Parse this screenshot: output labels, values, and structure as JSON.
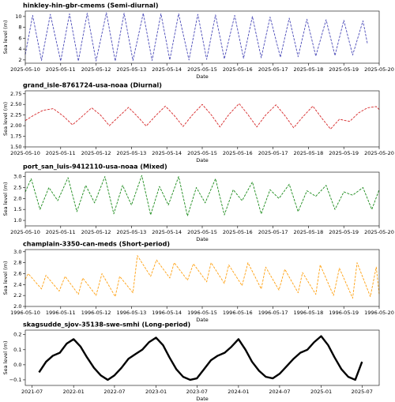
{
  "chart_data": [
    {
      "type": "line",
      "title": "hinkley-hin-gbr-cmems (Semi-diurnal)",
      "xlabel": "Date",
      "ylabel": "Sea level (m)",
      "color": "#4a4ab8",
      "linestyle": "dashed",
      "xlim": [
        "2025-05-10",
        "2025-05-20"
      ],
      "ylim": [
        1.4,
        11.0
      ],
      "xticks": [
        "2025-05-10",
        "2025-05-11",
        "2025-05-12",
        "2025-05-13",
        "2025-05-14",
        "2025-05-15",
        "2025-05-16",
        "2025-05-17",
        "2025-05-18",
        "2025-05-19",
        "2025-05-20"
      ],
      "yticks": [
        2,
        4,
        6,
        8,
        10
      ],
      "x": [
        "2025-05-10 00:00",
        "2025-05-10 05:00",
        "2025-05-10 11:00",
        "2025-05-10 17:00",
        "2025-05-11 00:00",
        "2025-05-11 06:00",
        "2025-05-11 12:00",
        "2025-05-11 18:00",
        "2025-05-12 00:00",
        "2025-05-12 07:00",
        "2025-05-12 13:00",
        "2025-05-12 19:00",
        "2025-05-13 01:00",
        "2025-05-13 08:00",
        "2025-05-13 14:00",
        "2025-05-13 20:00",
        "2025-05-14 02:00",
        "2025-05-14 08:00",
        "2025-05-14 15:00",
        "2025-05-14 21:00",
        "2025-05-15 03:00",
        "2025-05-15 09:00",
        "2025-05-15 15:00",
        "2025-05-15 22:00",
        "2025-05-16 04:00",
        "2025-05-16 10:00",
        "2025-05-16 16:00",
        "2025-05-16 22:00",
        "2025-05-17 05:00",
        "2025-05-17 11:00",
        "2025-05-17 17:00",
        "2025-05-17 23:00",
        "2025-05-18 05:00",
        "2025-05-18 12:00",
        "2025-05-18 18:00",
        "2025-05-19 00:00",
        "2025-05-19 06:00",
        "2025-05-19 13:00",
        "2025-05-19 16:00"
      ],
      "values": [
        3.0,
        10.2,
        1.9,
        10.4,
        1.8,
        10.5,
        1.8,
        10.6,
        1.8,
        10.7,
        1.8,
        10.6,
        1.9,
        10.6,
        1.9,
        10.5,
        2.0,
        10.5,
        2.0,
        10.4,
        2.1,
        10.3,
        2.2,
        10.2,
        2.3,
        10.0,
        2.4,
        9.9,
        2.5,
        9.7,
        2.6,
        9.5,
        2.7,
        9.4,
        2.8,
        9.3,
        2.9,
        9.2,
        5.0
      ]
    },
    {
      "type": "line",
      "title": "grand_isle-8761724-usa-noaa (Diurnal)",
      "xlabel": "Date",
      "ylabel": "Sea level (m)",
      "color": "#d62728",
      "linestyle": "dashed",
      "xlim": [
        "2025-05-10",
        "2025-05-20"
      ],
      "ylim": [
        1.5,
        2.82
      ],
      "xticks": [
        "2025-05-10",
        "2025-05-11",
        "2025-05-12",
        "2025-05-13",
        "2025-05-14",
        "2025-05-15",
        "2025-05-16",
        "2025-05-17",
        "2025-05-18",
        "2025-05-19",
        "2025-05-20"
      ],
      "yticks": [
        {
          "value": 1.5,
          "label": "1.50"
        },
        1.75,
        {
          "value": 2,
          "label": "2.00"
        },
        2.25,
        {
          "value": 2.5,
          "label": "2.50"
        },
        2.75
      ],
      "x": [
        "2025-05-10 00:00",
        "2025-05-10 06:00",
        "2025-05-10 12:00",
        "2025-05-10 19:00",
        "2025-05-11 02:00",
        "2025-05-11 08:00",
        "2025-05-11 14:00",
        "2025-05-11 21:00",
        "2025-05-12 03:00",
        "2025-05-12 09:00",
        "2025-05-12 15:00",
        "2025-05-12 22:00",
        "2025-05-13 04:00",
        "2025-05-13 10:00",
        "2025-05-13 16:00",
        "2025-05-13 23:00",
        "2025-05-14 05:00",
        "2025-05-14 11:00",
        "2025-05-14 17:00",
        "2025-05-15 00:00",
        "2025-05-15 06:00",
        "2025-05-15 12:00",
        "2025-05-15 18:00",
        "2025-05-16 01:00",
        "2025-05-16 07:00",
        "2025-05-16 13:00",
        "2025-05-16 19:00",
        "2025-05-17 02:00",
        "2025-05-17 08:00",
        "2025-05-17 14:00",
        "2025-05-17 20:00",
        "2025-05-18 03:00",
        "2025-05-18 09:00",
        "2025-05-18 15:00",
        "2025-05-18 21:00",
        "2025-05-19 04:00",
        "2025-05-19 10:00",
        "2025-05-19 16:00",
        "2025-05-19 22:00",
        "2025-05-20 00:00"
      ],
      "values": [
        2.12,
        2.25,
        2.36,
        2.4,
        2.22,
        2.02,
        2.2,
        2.42,
        2.25,
        2.0,
        2.2,
        2.43,
        2.22,
        1.99,
        2.22,
        2.46,
        2.24,
        1.98,
        2.24,
        2.5,
        2.26,
        1.97,
        2.26,
        2.52,
        2.26,
        1.97,
        2.25,
        2.49,
        2.24,
        1.95,
        2.2,
        2.46,
        2.18,
        1.92,
        2.15,
        2.1,
        2.3,
        2.42,
        2.45,
        2.38
      ]
    },
    {
      "type": "line",
      "title": "port_san_luis-9412110-usa-noaa (Mixed)",
      "xlabel": "Date",
      "ylabel": "Sea level (m)",
      "color": "#1a8a1a",
      "linestyle": "dashed",
      "xlim": [
        "2025-05-10",
        "2025-05-20"
      ],
      "ylim": [
        0.75,
        3.2
      ],
      "xticks": [
        "2025-05-10",
        "2025-05-11",
        "2025-05-12",
        "2025-05-13",
        "2025-05-14",
        "2025-05-15",
        "2025-05-16",
        "2025-05-17",
        "2025-05-18",
        "2025-05-19",
        "2025-05-20"
      ],
      "yticks": [
        {
          "value": 1,
          "label": "1.0"
        },
        1.5,
        {
          "value": 2,
          "label": "2.0"
        },
        2.5,
        {
          "value": 3,
          "label": "3.0"
        }
      ],
      "x": [
        "2025-05-10 00:00",
        "2025-05-10 04:00",
        "2025-05-10 10:00",
        "2025-05-10 16:00",
        "2025-05-10 22:00",
        "2025-05-11 05:00",
        "2025-05-11 11:00",
        "2025-05-11 17:00",
        "2025-05-11 23:00",
        "2025-05-12 06:00",
        "2025-05-12 12:00",
        "2025-05-12 18:00",
        "2025-05-13 00:00",
        "2025-05-13 07:00",
        "2025-05-13 13:00",
        "2025-05-13 19:00",
        "2025-05-14 01:00",
        "2025-05-14 08:00",
        "2025-05-14 14:00",
        "2025-05-14 20:00",
        "2025-05-15 02:00",
        "2025-05-15 09:00",
        "2025-05-15 15:00",
        "2025-05-15 21:00",
        "2025-05-16 03:00",
        "2025-05-16 10:00",
        "2025-05-16 16:00",
        "2025-05-16 22:00",
        "2025-05-17 04:00",
        "2025-05-17 11:00",
        "2025-05-17 17:00",
        "2025-05-17 23:00",
        "2025-05-18 05:00",
        "2025-05-18 12:00",
        "2025-05-18 18:00",
        "2025-05-19 00:00",
        "2025-05-19 06:00",
        "2025-05-19 13:00",
        "2025-05-19 19:00",
        "2025-05-20 00:00"
      ],
      "values": [
        2.3,
        2.9,
        1.5,
        2.5,
        1.9,
        2.95,
        1.4,
        2.6,
        1.8,
        3.0,
        1.3,
        2.6,
        1.7,
        3.05,
        1.25,
        2.55,
        1.7,
        3.0,
        1.2,
        2.5,
        1.8,
        2.9,
        1.25,
        2.4,
        1.9,
        2.75,
        1.3,
        2.4,
        2.0,
        2.65,
        1.4,
        2.35,
        2.1,
        2.6,
        1.5,
        2.3,
        2.15,
        2.5,
        1.5,
        2.4
      ]
    },
    {
      "type": "line",
      "title": "champlain-3350-can-meds (Short-period)",
      "xlabel": "Date",
      "ylabel": "Sea level (m)",
      "color": "#ffa010",
      "linestyle": "dashed",
      "xlim": [
        "1996-05-10",
        "1996-05-20"
      ],
      "ylim": [
        2.0,
        3.04
      ],
      "xticks": [
        "1996-05-10",
        "1996-05-11",
        "1996-05-12",
        "1996-05-13",
        "1996-05-14",
        "1996-05-15",
        "1996-05-16",
        "1996-05-17",
        "1996-05-18",
        "1996-05-19",
        "1996-05-20"
      ],
      "yticks": [
        {
          "value": 2,
          "label": "2.0"
        },
        2.2,
        2.4,
        2.6,
        2.8,
        {
          "value": 3,
          "label": "3.0"
        }
      ],
      "x": [
        "1996-05-10 00:00",
        "1996-05-10 02:00",
        "1996-05-10 11:00",
        "1996-05-10 14:00",
        "1996-05-10 23:00",
        "1996-05-11 03:00",
        "1996-05-11 12:00",
        "1996-05-11 15:00",
        "1996-05-12 00:00",
        "1996-05-12 04:00",
        "1996-05-12 13:00",
        "1996-05-12 16:00",
        "1996-05-13 01:00",
        "1996-05-13 04:00",
        "1996-05-13 13:00",
        "1996-05-13 17:00",
        "1996-05-14 02:00",
        "1996-05-14 05:00",
        "1996-05-14 14:00",
        "1996-05-14 18:00",
        "1996-05-15 03:00",
        "1996-05-15 06:00",
        "1996-05-15 15:00",
        "1996-05-15 18:00",
        "1996-05-16 03:00",
        "1996-05-16 07:00",
        "1996-05-16 16:00",
        "1996-05-16 19:00",
        "1996-05-17 04:00",
        "1996-05-17 08:00",
        "1996-05-17 17:00",
        "1996-05-17 20:00",
        "1996-05-18 05:00",
        "1996-05-18 08:00",
        "1996-05-18 17:00",
        "1996-05-18 21:00",
        "1996-05-19 06:00",
        "1996-05-19 09:00",
        "1996-05-19 18:00",
        "1996-05-19 22:00",
        "1996-05-20 00:00"
      ],
      "values": [
        2.5,
        2.6,
        2.32,
        2.57,
        2.28,
        2.55,
        2.22,
        2.52,
        2.2,
        2.6,
        2.18,
        2.55,
        2.25,
        2.93,
        2.55,
        2.85,
        2.52,
        2.8,
        2.48,
        2.78,
        2.45,
        2.8,
        2.42,
        2.76,
        2.38,
        2.8,
        2.32,
        2.72,
        2.3,
        2.68,
        2.25,
        2.62,
        2.22,
        2.76,
        2.2,
        2.7,
        2.15,
        2.8,
        2.18,
        2.72,
        2.22
      ]
    },
    {
      "type": "line",
      "title": "skagsudde_sjov-35138-swe-smhi (Long-period)",
      "xlabel": "Date",
      "ylabel": "Sea level (m)",
      "color": "#000000",
      "linestyle": "solid",
      "xlim": [
        "2021-06-01",
        "2025-09-15"
      ],
      "ylim": [
        -0.137,
        0.23
      ],
      "xticks": [
        "2021-07",
        "2022-01",
        "2022-07",
        "2023-01",
        "2023-07",
        "2024-01",
        "2024-07",
        "2025-01",
        "2025-07"
      ],
      "yticks": [
        {
          "value": -0.1,
          "label": "−0.1"
        },
        {
          "value": 0,
          "label": "0.0"
        },
        0.1,
        0.2
      ],
      "x": [
        "2021-08",
        "2021-09",
        "2021-10",
        "2021-11",
        "2021-12",
        "2022-01",
        "2022-02",
        "2022-03",
        "2022-04",
        "2022-05",
        "2022-06",
        "2022-07",
        "2022-08",
        "2022-09",
        "2022-10",
        "2022-11",
        "2022-12",
        "2023-01",
        "2023-02",
        "2023-03",
        "2023-04",
        "2023-05",
        "2023-06",
        "2023-07",
        "2023-08",
        "2023-09",
        "2023-10",
        "2023-11",
        "2023-12",
        "2024-01",
        "2024-02",
        "2024-03",
        "2024-04",
        "2024-05",
        "2024-06",
        "2024-07",
        "2024-08",
        "2024-09",
        "2024-10",
        "2024-11",
        "2024-12",
        "2025-01",
        "2025-02",
        "2025-03",
        "2025-04",
        "2025-05",
        "2025-06",
        "2025-07"
      ],
      "values": [
        -0.05,
        0.02,
        0.06,
        0.08,
        0.14,
        0.17,
        0.12,
        0.05,
        -0.02,
        -0.07,
        -0.1,
        -0.07,
        -0.02,
        0.04,
        0.07,
        0.1,
        0.15,
        0.18,
        0.13,
        0.05,
        -0.03,
        -0.08,
        -0.1,
        -0.09,
        -0.03,
        0.03,
        0.06,
        0.08,
        0.12,
        0.17,
        0.1,
        0.02,
        -0.04,
        -0.08,
        -0.09,
        -0.06,
        -0.01,
        0.04,
        0.08,
        0.1,
        0.15,
        0.19,
        0.13,
        0.05,
        -0.03,
        -0.08,
        -0.1,
        0.02
      ]
    }
  ]
}
